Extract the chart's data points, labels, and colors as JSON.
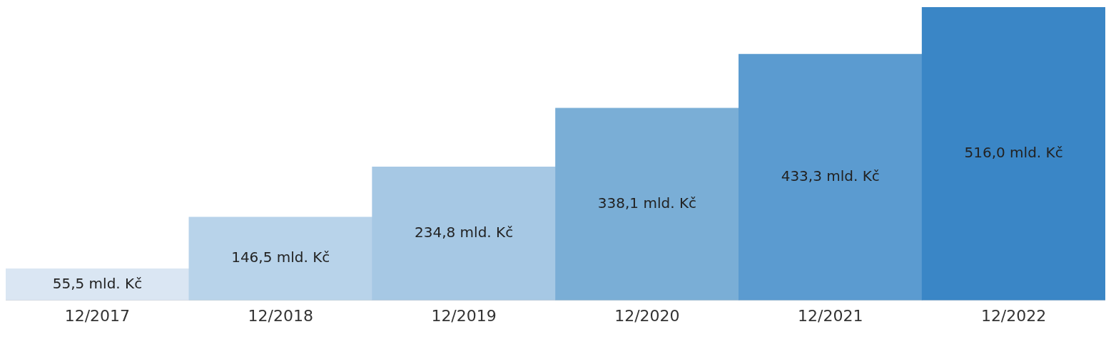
{
  "chart_data": {
    "type": "bar",
    "categories": [
      "12/2017",
      "12/2018",
      "12/2019",
      "12/2020",
      "12/2021",
      "12/2022"
    ],
    "values": [
      55.5,
      146.5,
      234.8,
      338.1,
      433.3,
      516.0
    ],
    "colors": [
      "#dae6f3",
      "#b8d3ea",
      "#a6c8e4",
      "#7aaed6",
      "#5b9bd0",
      "#3a86c6"
    ],
    "value_labels": [
      "55,5 mld. Kč",
      "146,5 mld. Kč",
      "234,8 mld. Kč",
      "338,1 mld. Kč",
      "433,3 mld. Kč",
      "516,0 mld. Kč"
    ],
    "grid": false,
    "legend": false
  }
}
